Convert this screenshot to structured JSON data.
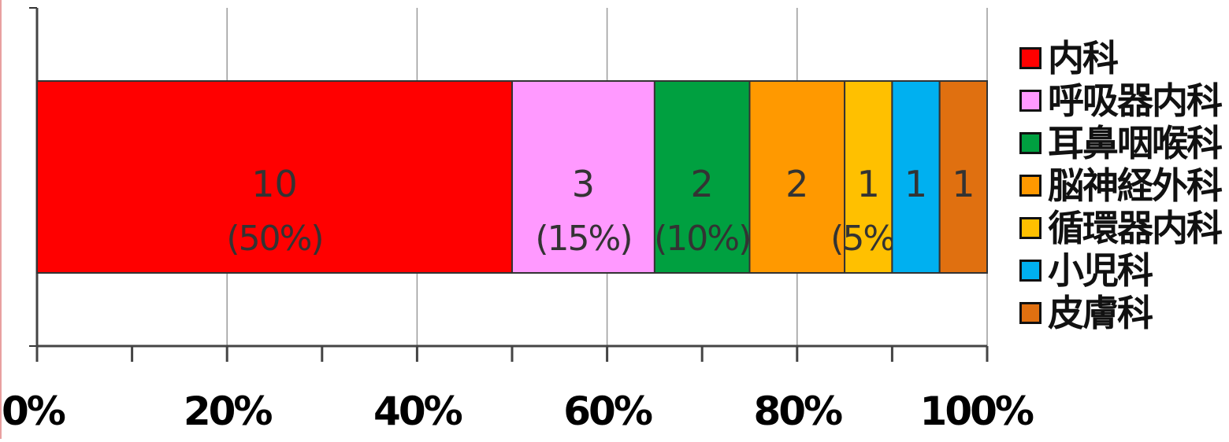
{
  "chart_data": {
    "type": "bar",
    "orientation": "horizontal",
    "stacked": "percent",
    "categories": [
      ""
    ],
    "series": [
      {
        "name": "内科",
        "values": [
          10
        ],
        "label": "10",
        "percent_label": "(50%)",
        "color": "#ff0000"
      },
      {
        "name": "呼吸器内科",
        "values": [
          3
        ],
        "label": "3",
        "percent_label": "(15%)",
        "color": "#ff99ff"
      },
      {
        "name": "耳鼻咽喉科",
        "values": [
          2
        ],
        "label": "2",
        "percent_label": "(10%)",
        "color": "#00a040"
      },
      {
        "name": "脳神経外科",
        "values": [
          2
        ],
        "label": "2",
        "percent_label": "",
        "color": "#ff9900"
      },
      {
        "name": "循環器内科",
        "values": [
          1
        ],
        "label": "1",
        "percent_label": "(5%)",
        "color": "#ffc000"
      },
      {
        "name": "小児科",
        "values": [
          1
        ],
        "label": "1",
        "percent_label": "",
        "color": "#00b0f0"
      },
      {
        "name": "皮膚科",
        "values": [
          1
        ],
        "label": "1",
        "percent_label": "",
        "color": "#e07010"
      }
    ],
    "x_ticks": [
      "0%",
      "20%",
      "40%",
      "60%",
      "80%",
      "100%"
    ],
    "xlim": [
      0,
      100
    ],
    "grid": true,
    "legend": "right",
    "title": "",
    "xlabel": "",
    "ylabel": ""
  }
}
